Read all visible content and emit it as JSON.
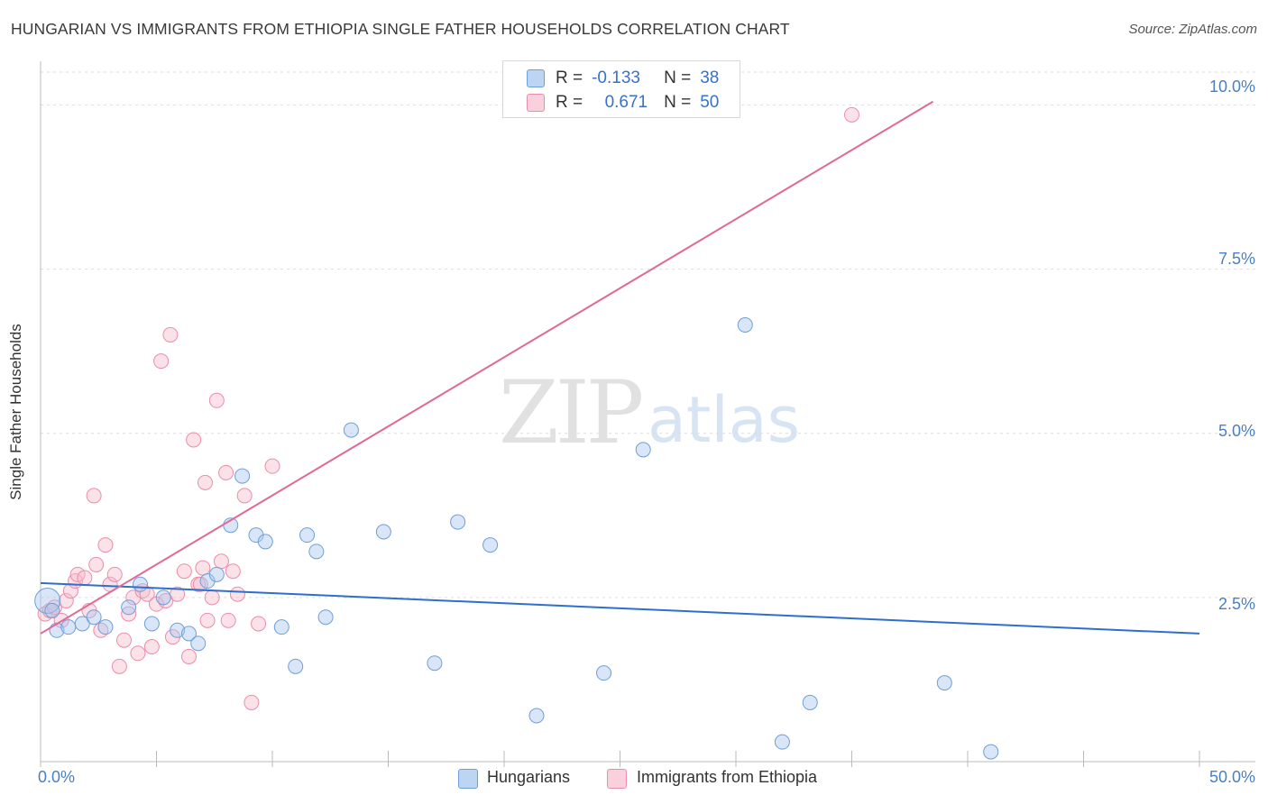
{
  "title": "HUNGARIAN VS IMMIGRANTS FROM ETHIOPIA SINGLE FATHER HOUSEHOLDS CORRELATION CHART",
  "source": "Source: ZipAtlas.com",
  "watermark": {
    "zip": "ZIP",
    "atlas": "atlas"
  },
  "legend": {
    "r_label": "R =",
    "n_label": "N =",
    "series1": {
      "r": "-0.133",
      "n": "38"
    },
    "series2": {
      "r": "0.671",
      "n": "50"
    }
  },
  "bottom_legend": {
    "series1": "Hungarians",
    "series2": "Immigrants from Ethiopia"
  },
  "colors": {
    "hungarians_fill": "#a9c8ef",
    "hungarians_stroke": "#6f9fd8",
    "hungarians_line": "#2f6fcc",
    "ethiopia_fill": "#f6bccd",
    "ethiopia_stroke": "#ea8dab",
    "ethiopia_line": "#e06a95",
    "tick_color": "#4a7fc1",
    "grid": "#dddddd"
  },
  "chart_data": {
    "type": "scatter",
    "title": "HUNGARIAN VS IMMIGRANTS FROM ETHIOPIA SINGLE FATHER HOUSEHOLDS CORRELATION CHART",
    "xlabel": "",
    "ylabel": "Single Father Households",
    "xlim": [
      0,
      50
    ],
    "ylim": [
      0,
      10.5
    ],
    "x_tick_labels": [
      "0.0%",
      "50.0%"
    ],
    "y_ticks": [
      2.5,
      5.0,
      7.5,
      10.0
    ],
    "y_tick_labels": [
      "2.5%",
      "5.0%",
      "7.5%",
      "10.0%"
    ],
    "grid": true,
    "series": [
      {
        "name": "Hungarians",
        "r": -0.133,
        "n": 38,
        "trend": {
          "x": [
            0,
            50
          ],
          "y": [
            2.72,
            1.95
          ]
        },
        "points": [
          [
            0.3,
            2.45
          ],
          [
            0.7,
            2.0
          ],
          [
            1.2,
            2.05
          ],
          [
            1.8,
            2.1
          ],
          [
            2.3,
            2.2
          ],
          [
            2.8,
            2.05
          ],
          [
            3.8,
            2.35
          ],
          [
            4.3,
            2.7
          ],
          [
            4.8,
            2.1
          ],
          [
            5.3,
            2.5
          ],
          [
            5.9,
            2.0
          ],
          [
            6.4,
            1.95
          ],
          [
            6.8,
            1.8
          ],
          [
            7.2,
            2.75
          ],
          [
            7.6,
            2.85
          ],
          [
            8.2,
            3.6
          ],
          [
            8.7,
            4.35
          ],
          [
            9.3,
            3.45
          ],
          [
            9.7,
            3.35
          ],
          [
            10.4,
            2.05
          ],
          [
            11.0,
            1.45
          ],
          [
            11.5,
            3.45
          ],
          [
            11.9,
            3.2
          ],
          [
            12.3,
            2.2
          ],
          [
            13.4,
            5.05
          ],
          [
            14.8,
            3.5
          ],
          [
            17.0,
            1.5
          ],
          [
            18.0,
            3.65
          ],
          [
            19.4,
            3.3
          ],
          [
            21.4,
            0.7
          ],
          [
            24.3,
            1.35
          ],
          [
            26.0,
            4.75
          ],
          [
            30.4,
            6.65
          ],
          [
            32.0,
            0.3
          ],
          [
            33.2,
            0.9
          ],
          [
            39.0,
            1.2
          ],
          [
            41.0,
            0.15
          ],
          [
            0.5,
            2.3
          ]
        ]
      },
      {
        "name": "Immigrants from Ethiopia",
        "r": 0.671,
        "n": 50,
        "trend": {
          "x": [
            0,
            38.5
          ],
          "y": [
            1.95,
            10.05
          ]
        },
        "points": [
          [
            0.2,
            2.25
          ],
          [
            0.4,
            2.3
          ],
          [
            0.6,
            2.35
          ],
          [
            0.9,
            2.15
          ],
          [
            1.1,
            2.45
          ],
          [
            1.3,
            2.6
          ],
          [
            1.5,
            2.75
          ],
          [
            1.6,
            2.85
          ],
          [
            1.9,
            2.8
          ],
          [
            2.1,
            2.3
          ],
          [
            2.3,
            4.05
          ],
          [
            2.4,
            3.0
          ],
          [
            2.6,
            2.0
          ],
          [
            2.8,
            3.3
          ],
          [
            3.0,
            2.7
          ],
          [
            3.2,
            2.85
          ],
          [
            3.4,
            1.45
          ],
          [
            3.6,
            1.85
          ],
          [
            3.8,
            2.25
          ],
          [
            4.0,
            2.5
          ],
          [
            4.2,
            1.65
          ],
          [
            4.4,
            2.6
          ],
          [
            4.6,
            2.55
          ],
          [
            4.8,
            1.75
          ],
          [
            5.0,
            2.4
          ],
          [
            5.2,
            6.1
          ],
          [
            5.4,
            2.45
          ],
          [
            5.6,
            6.5
          ],
          [
            5.7,
            1.9
          ],
          [
            5.9,
            2.55
          ],
          [
            6.2,
            2.9
          ],
          [
            6.4,
            1.6
          ],
          [
            6.6,
            4.9
          ],
          [
            6.8,
            2.7
          ],
          [
            7.0,
            2.95
          ],
          [
            7.1,
            4.25
          ],
          [
            7.2,
            2.15
          ],
          [
            7.4,
            2.5
          ],
          [
            7.6,
            5.5
          ],
          [
            7.8,
            3.05
          ],
          [
            8.0,
            4.4
          ],
          [
            8.1,
            2.15
          ],
          [
            8.3,
            2.9
          ],
          [
            8.5,
            2.55
          ],
          [
            8.8,
            4.05
          ],
          [
            9.1,
            0.9
          ],
          [
            10.0,
            4.5
          ],
          [
            9.4,
            2.1
          ],
          [
            35.0,
            9.85
          ],
          [
            6.9,
            2.7
          ]
        ]
      }
    ]
  }
}
